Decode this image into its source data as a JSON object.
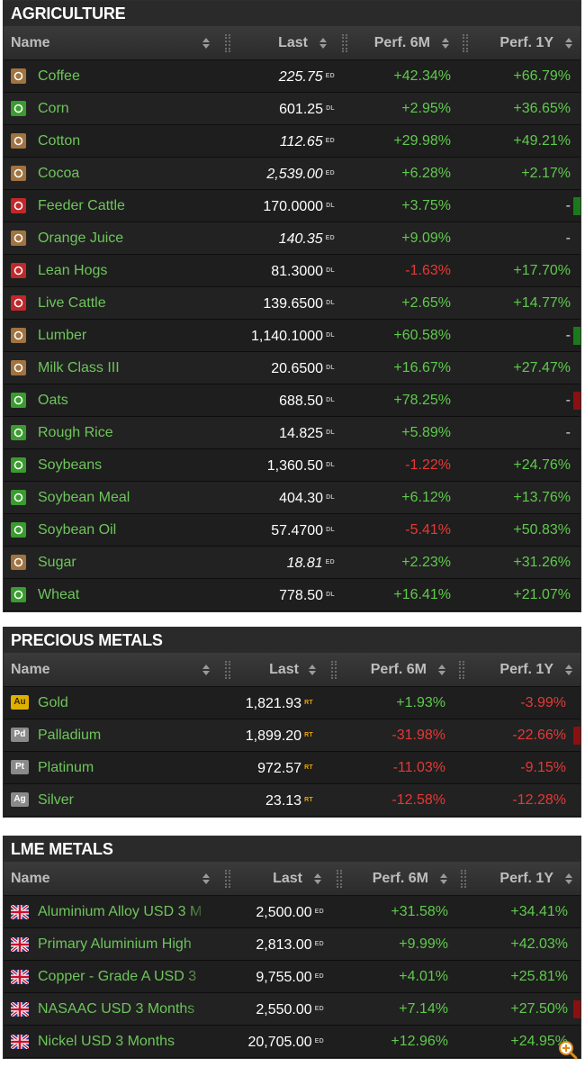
{
  "columns": {
    "name": "Name",
    "last": "Last",
    "perf6m": "Perf. 6M",
    "perf1y": "Perf. 1Y"
  },
  "agriculture": {
    "title": "AGRICULTURE",
    "rows": [
      {
        "name": "Coffee",
        "last": "225.75",
        "src": "ED",
        "p6": "+42.34%",
        "p1": "+66.79%",
        "p6s": "pos",
        "p1s": "pos",
        "italic": true,
        "icon": "coffee-icon",
        "color": "#a07340"
      },
      {
        "name": "Corn",
        "last": "601.25",
        "src": "DL",
        "p6": "+2.95%",
        "p1": "+36.65%",
        "p6s": "pos",
        "p1s": "pos",
        "italic": false,
        "icon": "corn-icon",
        "color": "#3a9b2f"
      },
      {
        "name": "Cotton",
        "last": "112.65",
        "src": "ED",
        "p6": "+29.98%",
        "p1": "+49.21%",
        "p6s": "pos",
        "p1s": "pos",
        "italic": true,
        "icon": "cotton-icon",
        "color": "#a07340"
      },
      {
        "name": "Cocoa",
        "last": "2,539.00",
        "src": "ED",
        "p6": "+6.28%",
        "p1": "+2.17%",
        "p6s": "pos",
        "p1s": "pos",
        "italic": true,
        "icon": "cocoa-icon",
        "color": "#a07340"
      },
      {
        "name": "Feeder Cattle",
        "last": "170.0000",
        "src": "DL",
        "p6": "+3.75%",
        "p1": "-",
        "p6s": "pos",
        "p1s": "dash",
        "italic": false,
        "icon": "cattle-icon",
        "color": "#c0282b",
        "bar": "#1a7a1a"
      },
      {
        "name": "Orange Juice",
        "last": "140.35",
        "src": "ED",
        "p6": "+9.09%",
        "p1": "-",
        "p6s": "pos",
        "p1s": "dash",
        "italic": true,
        "icon": "orange-icon",
        "color": "#a07340"
      },
      {
        "name": "Lean Hogs",
        "last": "81.3000",
        "src": "DL",
        "p6": "-1.63%",
        "p1": "+17.70%",
        "p6s": "neg",
        "p1s": "pos",
        "italic": false,
        "icon": "hog-icon",
        "color": "#c0282b"
      },
      {
        "name": "Live Cattle",
        "last": "139.6500",
        "src": "DL",
        "p6": "+2.65%",
        "p1": "+14.77%",
        "p6s": "pos",
        "p1s": "pos",
        "italic": false,
        "icon": "cattle-icon",
        "color": "#c0282b"
      },
      {
        "name": "Lumber",
        "last": "1,140.1000",
        "src": "DL",
        "p6": "+60.58%",
        "p1": "-",
        "p6s": "pos",
        "p1s": "dash",
        "italic": false,
        "icon": "lumber-icon",
        "color": "#a07340",
        "bar": "#1a7a1a"
      },
      {
        "name": "Milk Class III",
        "last": "20.6500",
        "src": "DL",
        "p6": "+16.67%",
        "p1": "+27.47%",
        "p6s": "pos",
        "p1s": "pos",
        "italic": false,
        "icon": "milk-icon",
        "color": "#a07340"
      },
      {
        "name": "Oats",
        "last": "688.50",
        "src": "DL",
        "p6": "+78.25%",
        "p1": "-",
        "p6s": "pos",
        "p1s": "dash",
        "italic": false,
        "icon": "oats-icon",
        "color": "#3a9b2f",
        "bar": "#8b1010"
      },
      {
        "name": "Rough Rice",
        "last": "14.825",
        "src": "DL",
        "p6": "+5.89%",
        "p1": "-",
        "p6s": "pos",
        "p1s": "dash",
        "italic": false,
        "icon": "rice-icon",
        "color": "#3a9b2f"
      },
      {
        "name": "Soybeans",
        "last": "1,360.50",
        "src": "DL",
        "p6": "-1.22%",
        "p1": "+24.76%",
        "p6s": "neg",
        "p1s": "pos",
        "italic": false,
        "icon": "soybeans-icon",
        "color": "#3a9b2f"
      },
      {
        "name": "Soybean Meal",
        "last": "404.30",
        "src": "DL",
        "p6": "+6.12%",
        "p1": "+13.76%",
        "p6s": "pos",
        "p1s": "pos",
        "italic": false,
        "icon": "soybean-meal-icon",
        "color": "#3a9b2f"
      },
      {
        "name": "Soybean Oil",
        "last": "57.4700",
        "src": "DL",
        "p6": "-5.41%",
        "p1": "+50.83%",
        "p6s": "neg",
        "p1s": "pos",
        "italic": false,
        "icon": "soybean-oil-icon",
        "color": "#3a9b2f"
      },
      {
        "name": "Sugar",
        "last": "18.81",
        "src": "ED",
        "p6": "+2.23%",
        "p1": "+31.26%",
        "p6s": "pos",
        "p1s": "pos",
        "italic": true,
        "icon": "sugar-icon",
        "color": "#a07340"
      },
      {
        "name": "Wheat",
        "last": "778.50",
        "src": "DL",
        "p6": "+16.41%",
        "p1": "+21.07%",
        "p6s": "pos",
        "p1s": "pos",
        "italic": false,
        "icon": "wheat-icon",
        "color": "#3a9b2f"
      }
    ]
  },
  "precious": {
    "title": "PRECIOUS METALS",
    "rows": [
      {
        "name": "Gold",
        "sym": "Au",
        "symColor": "#e0b000",
        "symText": "#3a2a00",
        "last": "1,821.93",
        "src": "RT",
        "p6": "+1.93%",
        "p1": "-3.99%",
        "p6s": "pos",
        "p1s": "neg"
      },
      {
        "name": "Palladium",
        "sym": "Pd",
        "symColor": "#8a8a8a",
        "symText": "#ffffff",
        "last": "1,899.20",
        "src": "RT",
        "p6": "-31.98%",
        "p1": "-22.66%",
        "p6s": "neg",
        "p1s": "neg",
        "bar": "#8b1010"
      },
      {
        "name": "Platinum",
        "sym": "Pt",
        "symColor": "#8a8a8a",
        "symText": "#ffffff",
        "last": "972.57",
        "src": "RT",
        "p6": "-11.03%",
        "p1": "-9.15%",
        "p6s": "neg",
        "p1s": "neg"
      },
      {
        "name": "Silver",
        "sym": "Ag",
        "symColor": "#8a8a8a",
        "symText": "#ffffff",
        "last": "23.13",
        "src": "RT",
        "p6": "-12.58%",
        "p1": "-12.28%",
        "p6s": "neg",
        "p1s": "neg"
      }
    ]
  },
  "lme": {
    "title": "LME METALS",
    "rows": [
      {
        "name": "Aluminium Alloy USD 3 M",
        "last": "2,500.00",
        "src": "ED",
        "p6": "+31.58%",
        "p1": "+34.41%",
        "p6s": "pos",
        "p1s": "pos"
      },
      {
        "name": "Primary Aluminium High",
        "last": "2,813.00",
        "src": "ED",
        "p6": "+9.99%",
        "p1": "+42.03%",
        "p6s": "pos",
        "p1s": "pos"
      },
      {
        "name": "Copper - Grade A USD 3",
        "last": "9,755.00",
        "src": "ED",
        "p6": "+4.01%",
        "p1": "+25.81%",
        "p6s": "pos",
        "p1s": "pos"
      },
      {
        "name": "NASAAC USD 3 Months",
        "last": "2,550.00",
        "src": "ED",
        "p6": "+7.14%",
        "p1": "+27.50%",
        "p6s": "pos",
        "p1s": "pos",
        "bar": "#8b1010"
      },
      {
        "name": "Nickel USD 3 Months",
        "last": "20,705.00",
        "src": "ED",
        "p6": "+12.96%",
        "p1": "+24.95%",
        "p6s": "pos",
        "p1s": "pos"
      }
    ]
  }
}
